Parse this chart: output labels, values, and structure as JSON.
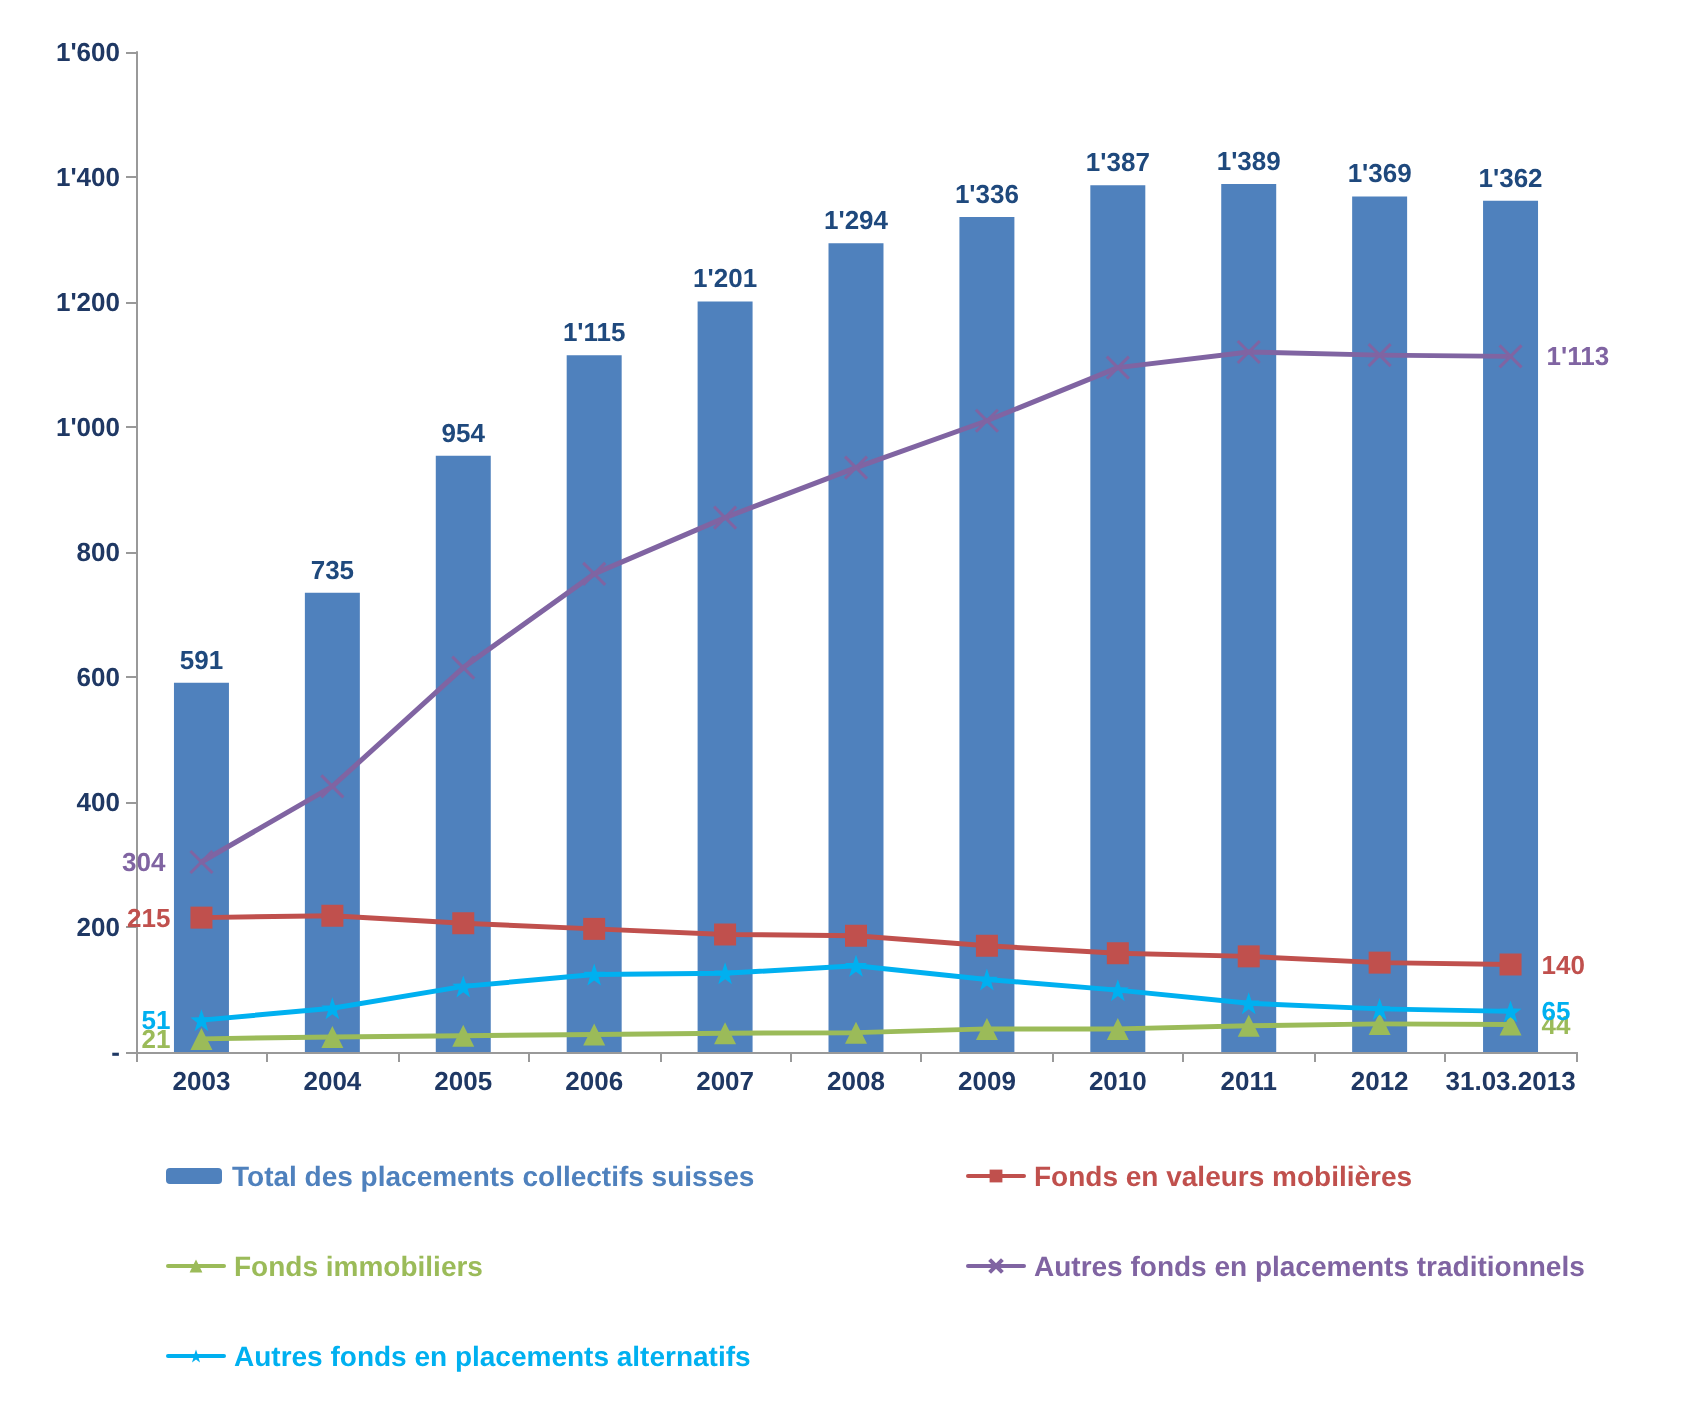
{
  "chart_data": {
    "type": "bar",
    "categories": [
      "2003",
      "2004",
      "2005",
      "2006",
      "2007",
      "2008",
      "2009",
      "2010",
      "2011",
      "2012",
      "31.03.2013"
    ],
    "series": [
      {
        "name": "Total des placements collectifs suisses",
        "color": "#4f81bd",
        "values": [
          591,
          735,
          954,
          1115,
          1201,
          1294,
          1336,
          1387,
          1389,
          1369,
          1362
        ],
        "value_labels": [
          "591",
          "735",
          "954",
          "1'115",
          "1'201",
          "1'294",
          "1'336",
          "1'387",
          "1'389",
          "1'369",
          "1'362"
        ]
      },
      {
        "name": "Fonds en valeurs mobilières",
        "type": "line",
        "color": "#c0504d",
        "marker": "square",
        "values": [
          215,
          218,
          206,
          197,
          188,
          186,
          170,
          158,
          153,
          143,
          140
        ],
        "value_labels": [
          "215",
          null,
          null,
          null,
          null,
          null,
          null,
          null,
          null,
          null,
          "140"
        ]
      },
      {
        "name": "Fonds immobiliers",
        "type": "line",
        "color": "#9bbb59",
        "marker": "triangle",
        "values": [
          21,
          24,
          26,
          28,
          30,
          31,
          37,
          37,
          42,
          45,
          44
        ],
        "value_labels": [
          "21",
          null,
          null,
          null,
          null,
          null,
          null,
          null,
          null,
          null,
          "44"
        ]
      },
      {
        "name": "Autres fonds en placements traditionnels",
        "type": "line",
        "color": "#8064a2",
        "marker": "cross",
        "values": [
          304,
          425,
          615,
          765,
          855,
          935,
          1010,
          1095,
          1120,
          1115,
          1113
        ],
        "value_labels": [
          "304",
          null,
          null,
          null,
          null,
          null,
          null,
          null,
          null,
          null,
          "1'113"
        ]
      },
      {
        "name": "Autres fonds en placements alternatifs",
        "type": "line",
        "color": "#00b0f0",
        "marker": "star",
        "values": [
          51,
          70,
          105,
          124,
          126,
          138,
          116,
          99,
          78,
          69,
          65
        ],
        "value_labels": [
          "51",
          null,
          null,
          null,
          null,
          null,
          null,
          null,
          null,
          null,
          "65"
        ]
      }
    ],
    "ylim": [
      0,
      1600
    ],
    "yticks": [
      {
        "value": 0,
        "label": "-"
      },
      {
        "value": 200,
        "label": "200"
      },
      {
        "value": 400,
        "label": "400"
      },
      {
        "value": 600,
        "label": "600"
      },
      {
        "value": 800,
        "label": "800"
      },
      {
        "value": 1000,
        "label": "1'000"
      },
      {
        "value": 1200,
        "label": "1'200"
      },
      {
        "value": 1400,
        "label": "1'400"
      },
      {
        "value": 1600,
        "label": "1'600"
      }
    ],
    "grid": false,
    "legend": "bottom"
  }
}
